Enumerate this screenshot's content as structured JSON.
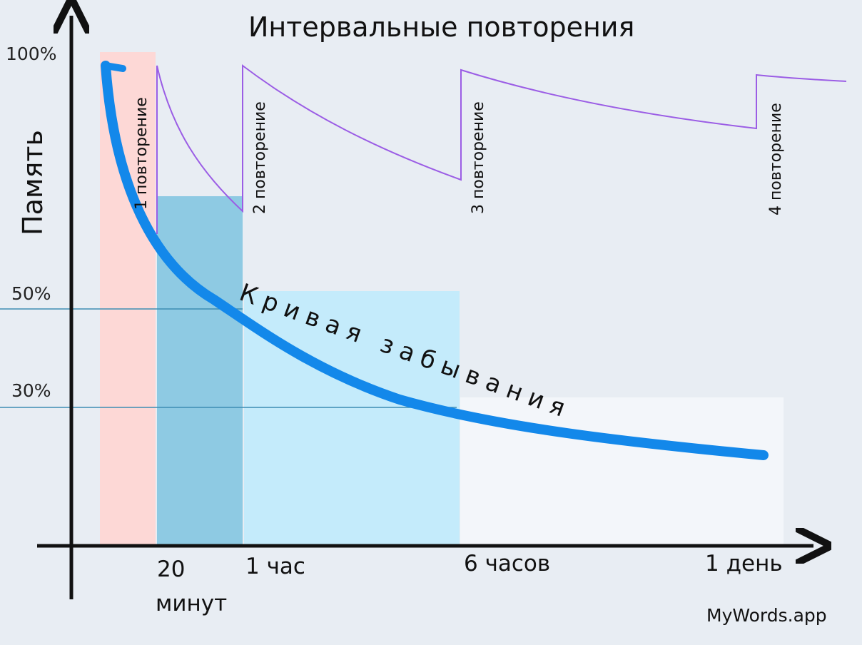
{
  "title": "Интервальные повторения",
  "y_axis_label": "Память",
  "y_ticks": [
    "100%",
    "50%",
    "30%"
  ],
  "x_ticks": {
    "t1_line1": "20",
    "t1_line2": "минут",
    "t2": "1 час",
    "t3": "6 часов",
    "t4": "1 день"
  },
  "repetitions": [
    "1 повторение",
    "2 повторение",
    "3 повторение",
    "4 повторение"
  ],
  "curve_label": "Кривая забывания",
  "brand": "MyWords.app",
  "colors": {
    "background": "#e8edf3",
    "band_initial": "#fdd8d6",
    "band_20min": "#8ecae3",
    "band_1h": "#c4ebfb",
    "band_6h": "#f3f6fa",
    "forgetting_curve": "#1388ea",
    "repetition_curve": "#9b5de5",
    "guide_line": "#3d8db3",
    "axis": "#111111"
  },
  "chart_data": {
    "type": "line",
    "title": "Интервальные повторения",
    "ylabel": "Память",
    "y_ticks": [
      "100%",
      "50%",
      "30%"
    ],
    "x_ticks": [
      "20 минут",
      "1 час",
      "6 часов",
      "1 день"
    ],
    "ylim": [
      0,
      100
    ],
    "series": [
      {
        "name": "Кривая забывания",
        "values": [
          96,
          63,
          48,
          28,
          18
        ]
      },
      {
        "name": "повторения",
        "values": [
          96,
          65,
          96,
          69,
          95,
          75,
          94,
          85,
          93
        ]
      }
    ]
  }
}
